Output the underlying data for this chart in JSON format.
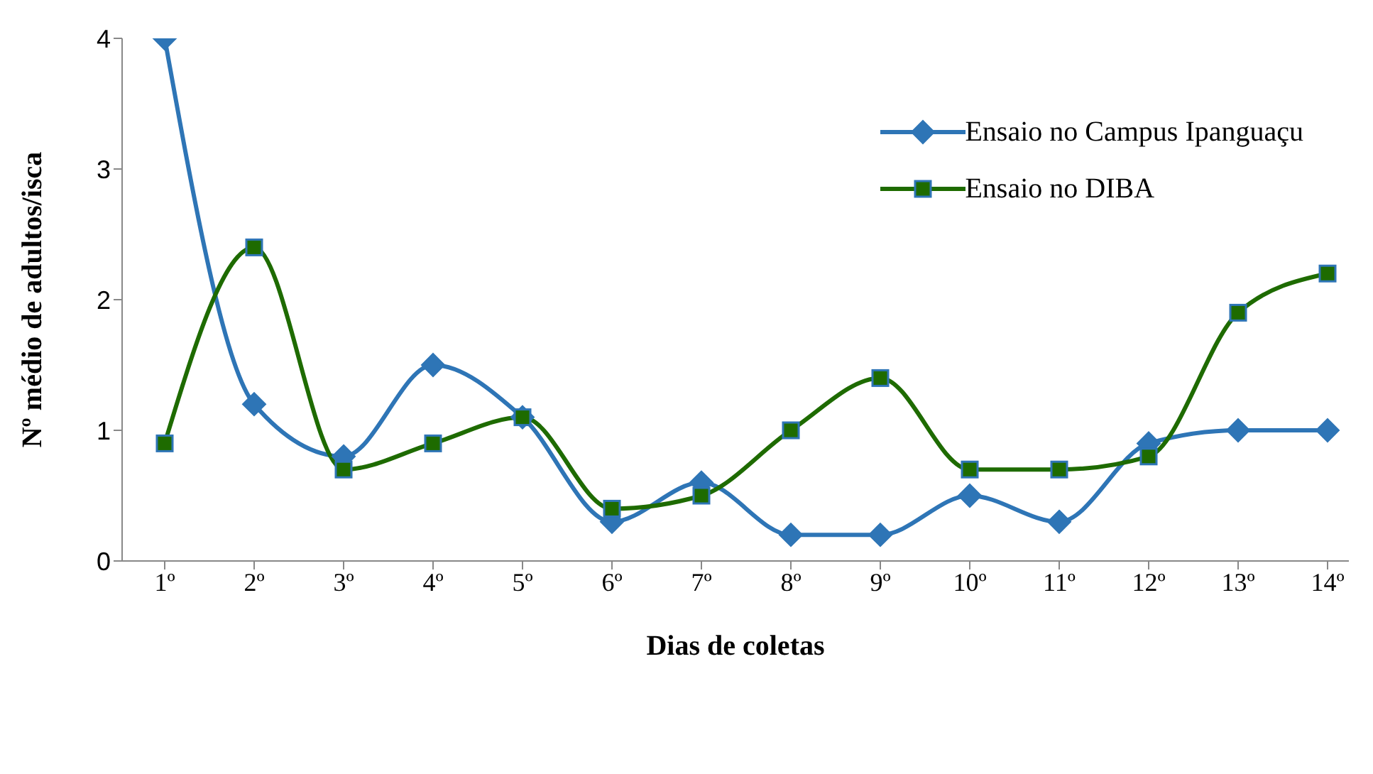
{
  "chart_data": {
    "type": "line",
    "xlabel": "Dias de coletas",
    "ylabel": "Nº médio de adultos/isca",
    "categories": [
      "1º",
      "2º",
      "3º",
      "4º",
      "5º",
      "6º",
      "7º",
      "8º",
      "9º",
      "10º",
      "11º",
      "12º",
      "13º",
      "14º"
    ],
    "series": [
      {
        "name": "Ensaio no Campus Ipanguaçu",
        "color": "#2e75b6",
        "marker": "diamond",
        "values": [
          4.0,
          1.2,
          0.8,
          1.5,
          1.1,
          0.3,
          0.6,
          0.2,
          0.2,
          0.5,
          0.3,
          0.9,
          1.0,
          1.0
        ]
      },
      {
        "name": "Ensaio no DIBA",
        "color": "#1e6b00",
        "marker": "square",
        "values": [
          0.9,
          2.4,
          0.7,
          0.9,
          1.1,
          0.4,
          0.5,
          1.0,
          1.4,
          0.7,
          0.7,
          0.8,
          1.9,
          2.2
        ]
      }
    ],
    "ylim": [
      0,
      4
    ],
    "yticks": [
      0,
      1,
      2,
      3,
      4
    ],
    "grid": false,
    "legend": "top right"
  }
}
